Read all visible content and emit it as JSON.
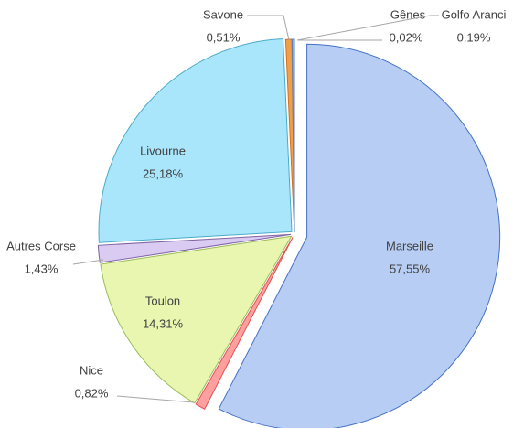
{
  "chart_data": {
    "type": "pie",
    "categories": [
      "Marseille",
      "Nice",
      "Toulon",
      "Autres Corse",
      "Livourne",
      "Savone",
      "Gênes",
      "Golfo Aranci"
    ],
    "values": [
      57.55,
      0.82,
      14.31,
      1.43,
      25.18,
      0.51,
      0.02,
      0.19
    ],
    "value_labels": [
      "57,55%",
      "0,82%",
      "14,31%",
      "1,43%",
      "25,18%",
      "0,51%",
      "0,02%",
      "0,19%"
    ],
    "colors": [
      "#b7cdf4",
      "#ff9f9f",
      "#e8f6b0",
      "#dacbf2",
      "#a9e6fc",
      "#f0a04b",
      "#a5a5a5",
      "#8fb0e0"
    ],
    "edge_colors": [
      "#4472c4",
      "#e05050",
      "#9bbb59",
      "#8064a2",
      "#4bacc6",
      "#d07020",
      "#808080",
      "#5b7fc0"
    ]
  }
}
